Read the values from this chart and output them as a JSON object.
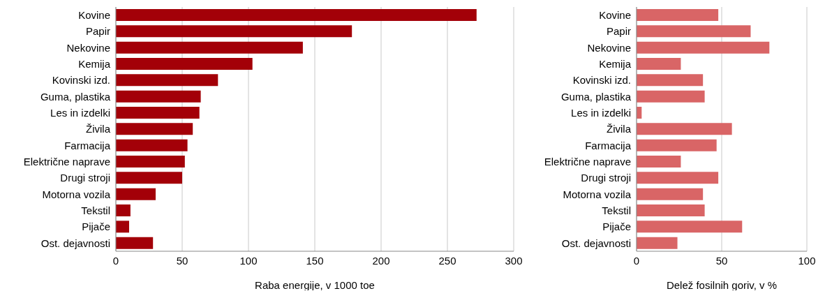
{
  "chart_data": [
    {
      "type": "bar",
      "orientation": "horizontal",
      "categories": [
        "Kovine",
        "Papir",
        "Nekovine",
        "Kemija",
        "Kovinski izd.",
        "Guma, plastika",
        "Les in izdelki",
        "Živila",
        "Farmacija",
        "Električne naprave",
        "Drugi stroji",
        "Motorna vozila",
        "Tekstil",
        "Pijače",
        "Ost. dejavnosti"
      ],
      "values": [
        272,
        178,
        141,
        103,
        77,
        64,
        63,
        58,
        54,
        52,
        50,
        30,
        11,
        10,
        28
      ],
      "color": "#a30008",
      "xlim": [
        0,
        300
      ],
      "xticks": [
        0,
        50,
        100,
        150,
        200,
        250,
        300
      ],
      "xlabel": "Raba energije, v 1000 toe",
      "grid": "x"
    },
    {
      "type": "bar",
      "orientation": "horizontal",
      "categories": [
        "Kovine",
        "Papir",
        "Nekovine",
        "Kemija",
        "Kovinski izd.",
        "Guma, plastika",
        "Les in izdelki",
        "Živila",
        "Farmacija",
        "Električne naprave",
        "Drugi stroji",
        "Motorna vozila",
        "Tekstil",
        "Pijače",
        "Ost. dejavnosti"
      ],
      "values": [
        48,
        67,
        78,
        26,
        39,
        40,
        3,
        56,
        47,
        26,
        48,
        39,
        40,
        62,
        24
      ],
      "color": "#d96566",
      "xlim": [
        0,
        100
      ],
      "xticks": [
        0,
        50,
        100
      ],
      "xlabel": "Delež fosilnih goriv, v %",
      "grid": "x"
    }
  ]
}
